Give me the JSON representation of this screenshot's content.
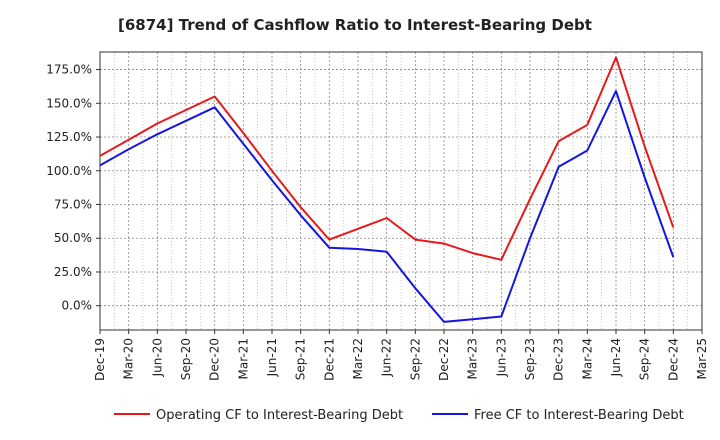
{
  "chart_data": {
    "type": "line",
    "title": "[6874]  Trend of Cashflow Ratio to Interest-Bearing Debt",
    "xlabel": "",
    "ylabel": "",
    "ylim": [
      -18,
      188
    ],
    "yticks": [
      0,
      25,
      50,
      75,
      100,
      125,
      150,
      175
    ],
    "ytick_labels": [
      "0.0%",
      "25.0%",
      "50.0%",
      "75.0%",
      "100.0%",
      "125.0%",
      "150.0%",
      "175.0%"
    ],
    "x_labels": [
      "Dec-19",
      "Mar-20",
      "Jun-20",
      "Sep-20",
      "Dec-20",
      "Mar-21",
      "Jun-21",
      "Sep-21",
      "Dec-21",
      "Mar-22",
      "Jun-22",
      "Sep-22",
      "Dec-22",
      "Mar-23",
      "Jun-23",
      "Sep-23",
      "Dec-23",
      "Mar-24",
      "Jun-24",
      "Sep-24",
      "Dec-24",
      "Mar-25"
    ],
    "grid": true,
    "legend_position": "bottom",
    "series": [
      {
        "name": "Operating CF to Interest-Bearing Debt",
        "color": "#e8191a",
        "values": [
          111,
          123,
          135,
          145,
          155,
          128,
          100,
          73,
          49,
          57,
          65,
          49,
          46,
          39,
          34,
          79,
          122,
          134,
          184,
          118,
          58,
          null
        ]
      },
      {
        "name": "Free CF to Interest-Bearing Debt",
        "color": "#1515e0",
        "values": [
          104,
          116,
          127,
          137,
          147,
          120,
          93,
          67,
          43,
          42,
          40,
          13,
          -12,
          -10,
          -8,
          50,
          103,
          115,
          159,
          95,
          36,
          null
        ]
      }
    ]
  }
}
